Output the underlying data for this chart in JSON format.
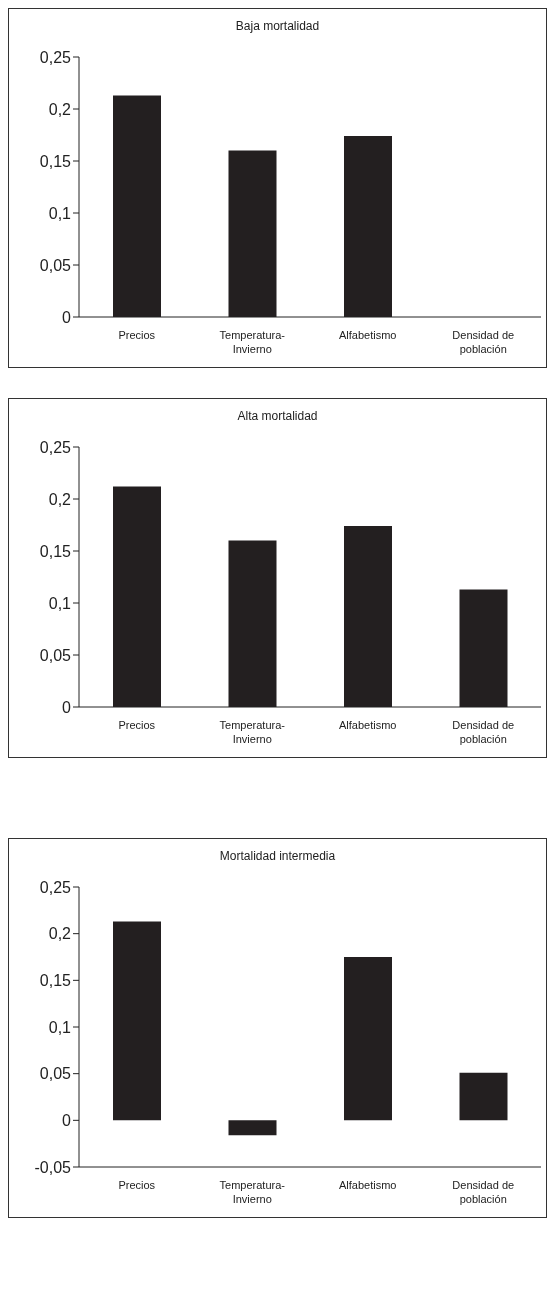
{
  "chart_data": [
    {
      "type": "bar",
      "title": "Baja mortalidad",
      "categories": [
        "Precios",
        "Temperatura-Invierno",
        "Alfabetismo",
        "Densidad de población"
      ],
      "values": [
        0.213,
        0.16,
        0.174,
        0
      ],
      "color": "#231f20",
      "ylim": [
        0,
        0.25
      ],
      "yticks": [
        {
          "value": 0,
          "label": "0"
        },
        {
          "value": 0.05,
          "label": "0,05"
        },
        {
          "value": 0.1,
          "label": "0,1"
        },
        {
          "value": 0.15,
          "label": "0,15"
        },
        {
          "value": 0.2,
          "label": "0,2"
        },
        {
          "value": 0.25,
          "label": "0,25"
        }
      ],
      "grid": false,
      "legend": false
    },
    {
      "type": "bar",
      "title": "Alta mortalidad",
      "categories": [
        "Precios",
        "Temperatura-Invierno",
        "Alfabetismo",
        "Densidad de población"
      ],
      "values": [
        0.212,
        0.16,
        0.174,
        0.113
      ],
      "color": "#231f20",
      "ylim": [
        0,
        0.25
      ],
      "yticks": [
        {
          "value": 0,
          "label": "0"
        },
        {
          "value": 0.05,
          "label": "0,05"
        },
        {
          "value": 0.1,
          "label": "0,1"
        },
        {
          "value": 0.15,
          "label": "0,15"
        },
        {
          "value": 0.2,
          "label": "0,2"
        },
        {
          "value": 0.25,
          "label": "0,25"
        }
      ],
      "grid": false,
      "legend": false
    },
    {
      "type": "bar",
      "title": "Mortalidad intermedia",
      "categories": [
        "Precios",
        "Temperatura-Invierno",
        "Alfabetismo",
        "Densidad de población"
      ],
      "values": [
        0.213,
        -0.016,
        0.175,
        0.051
      ],
      "color": "#231f20",
      "ylim": [
        -0.05,
        0.25
      ],
      "yticks": [
        {
          "value": -0.05,
          "label": "-0,05"
        },
        {
          "value": 0,
          "label": "0"
        },
        {
          "value": 0.05,
          "label": "0,05"
        },
        {
          "value": 0.1,
          "label": "0,1"
        },
        {
          "value": 0.15,
          "label": "0,15"
        },
        {
          "value": 0.2,
          "label": "0,2"
        },
        {
          "value": 0.25,
          "label": "0,25"
        }
      ],
      "grid": false,
      "legend": false
    }
  ]
}
